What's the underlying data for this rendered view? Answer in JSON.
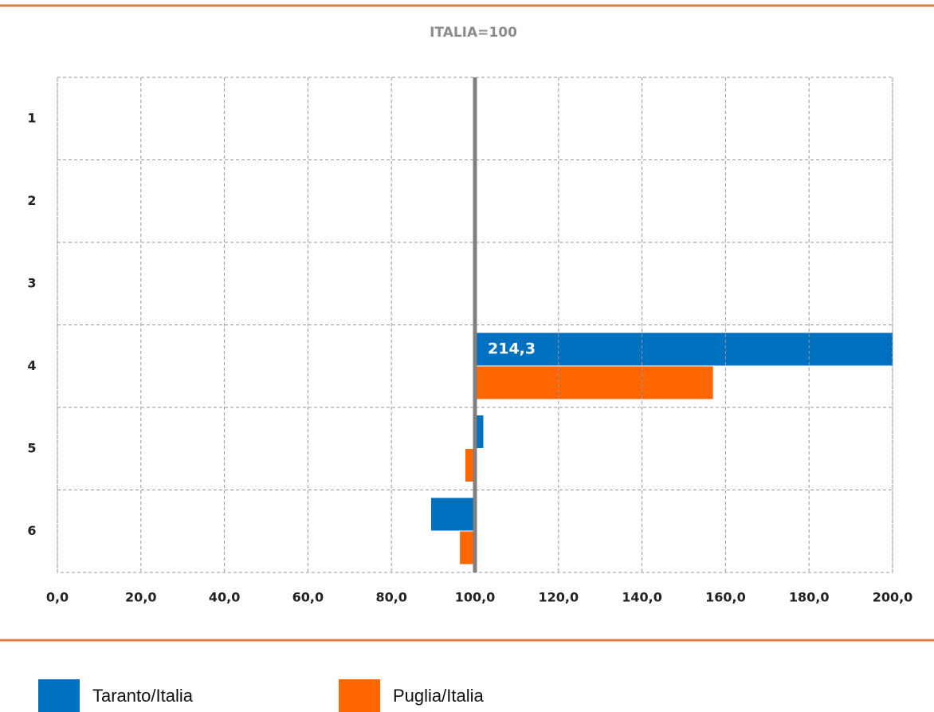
{
  "chart_data": {
    "type": "hbar",
    "title": "ITALIA=100",
    "categories": [
      "1",
      "2",
      "3",
      "4",
      "5",
      "6"
    ],
    "base": 100,
    "series": [
      {
        "name": "Taranto/Italia",
        "color": "#0070c0",
        "values": [
          null,
          null,
          null,
          214.3,
          102,
          89.5
        ],
        "value_labels": [
          null,
          null,
          null,
          "214,3",
          null,
          null
        ]
      },
      {
        "name": "Puglia/Italia",
        "color": "#ff6600",
        "values": [
          null,
          null,
          null,
          157,
          97.7,
          96.4
        ]
      }
    ],
    "xlim": [
      0,
      200
    ],
    "xticks": [
      {
        "value": 0,
        "label": "0,0"
      },
      {
        "value": 20,
        "label": "20,0"
      },
      {
        "value": 40,
        "label": "40,0"
      },
      {
        "value": 60,
        "label": "60,0"
      },
      {
        "value": 80,
        "label": "80,0"
      },
      {
        "value": 100,
        "label": "100,0"
      },
      {
        "value": 120,
        "label": "120,0"
      },
      {
        "value": 140,
        "label": "140,0"
      },
      {
        "value": 160,
        "label": "160,0"
      },
      {
        "value": 180,
        "label": "180,0"
      },
      {
        "value": 200,
        "label": "200,0"
      }
    ],
    "grid": true
  }
}
